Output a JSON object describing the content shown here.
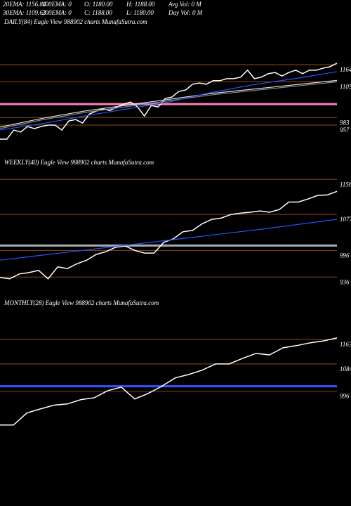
{
  "header": {
    "rows": [
      [
        "20EMA: 1156.84",
        "100EMA: 0",
        "O: 1180.00",
        "H: 1188.00",
        "Avg Vol: 0  M"
      ],
      [
        "30EMA: 1109.63",
        "200EMA: 0",
        "C: 1188.00",
        "L: 1180.00",
        "Day Vol: 0  M"
      ]
    ]
  },
  "chart_data": [
    {
      "type": "line",
      "title": "DAILY(84) Eagle  View  988902  charts MunafaSutra.com",
      "ylim": [
        868,
        1313
      ],
      "yticks": [
        1164,
        1105,
        983,
        957
      ],
      "ref_line": {
        "value": 1029,
        "color": "#ff80c0"
      },
      "series": [
        {
          "color": "#ffffff",
          "values": [
            909,
            909,
            940,
            933,
            952,
            945,
            952,
            957,
            957,
            940,
            971,
            976,
            964,
            995,
            1005,
            1012,
            1007,
            1019,
            1029,
            1036,
            1019,
            988,
            1024,
            1019,
            1048,
            1053,
            1072,
            1077,
            1097,
            1101,
            1097,
            1109,
            1109,
            1116,
            1116,
            1121,
            1145,
            1116,
            1121,
            1133,
            1137,
            1125,
            1137,
            1145,
            1133,
            1145,
            1145,
            1152,
            1157,
            1169
          ]
        },
        {
          "color": "#dddddd",
          "values": [
            950,
            980,
            1005,
            1025,
            1045,
            1065,
            1080,
            1095,
            1110
          ]
        },
        {
          "color": "#888888",
          "values": [
            945,
            975,
            1000,
            1020,
            1040,
            1060,
            1075,
            1090,
            1105
          ]
        },
        {
          "color": "#2255ff",
          "values": [
            940,
            962,
            988,
            1012,
            1036,
            1068,
            1095,
            1116,
            1140
          ]
        }
      ]
    },
    {
      "type": "line",
      "title": "WEEKLY(40) Eagle  View  988902  charts MunafaSutra.com",
      "ylim": [
        911,
        1196
      ],
      "yticks": [
        1156,
        1077,
        996,
        936
      ],
      "ref_line": {
        "value": 1007,
        "color": "#aaaaaa"
      },
      "series": [
        {
          "color": "#ffffff",
          "values": [
            935,
            932,
            943,
            946,
            951,
            932,
            959,
            955,
            966,
            974,
            987,
            993,
            1003,
            1006,
            996,
            990,
            990,
            1014,
            1022,
            1038,
            1041,
            1056,
            1066,
            1069,
            1077,
            1080,
            1082,
            1085,
            1082,
            1088,
            1105,
            1105,
            1112,
            1120,
            1121,
            1129
          ]
        },
        {
          "color": "#2255ff",
          "values": [
            974,
            984,
            994,
            1004,
            1014,
            1024,
            1034,
            1044,
            1055,
            1066
          ]
        }
      ]
    },
    {
      "type": "line",
      "title": "MONTHLY(28) Eagle  View  988902  charts MunafaSutra.com",
      "ylim": [
        660,
        1283
      ],
      "yticks": [
        1163,
        1084,
        996
      ],
      "ref_line": {
        "value": 1012,
        "color": "#3355ff"
      },
      "series": [
        {
          "color": "#ffffff",
          "values": [
            887,
            887,
            926,
            939,
            951,
            955,
            969,
            975,
            998,
            1009,
            971,
            989,
            1012,
            1039,
            1050,
            1064,
            1084,
            1084,
            1102,
            1118,
            1113,
            1136,
            1143,
            1152,
            1158,
            1168
          ]
        }
      ]
    }
  ]
}
